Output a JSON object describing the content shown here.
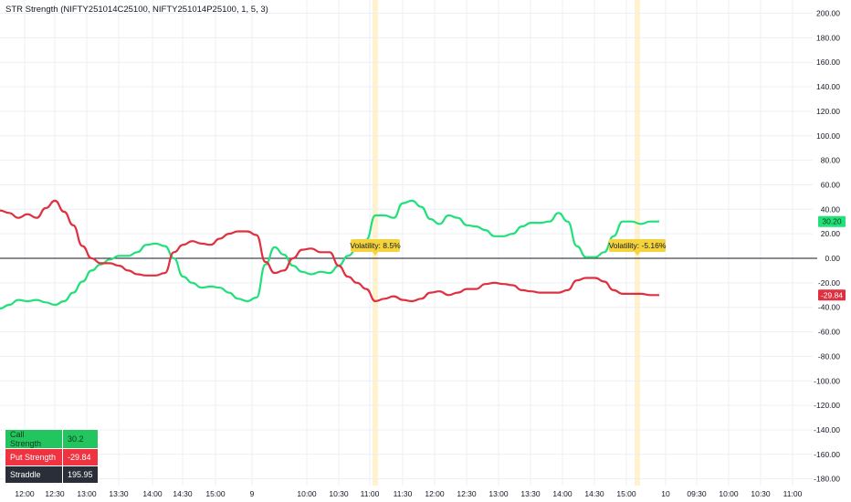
{
  "title": "STR Strength (NIFTY251014C25100, NIFTY251014P25100, 1, 5, 3)",
  "colors": {
    "call": "#22e07a",
    "put": "#e0303f",
    "zero_line": "#131722",
    "grid": "#eceff3",
    "highlight": "#fff2cc",
    "annotation_bg": "#f5d33c"
  },
  "stats_table": {
    "rows": [
      {
        "label": "Call Strength",
        "value": "30.2"
      },
      {
        "label": "Put Strength",
        "value": "-29.84"
      },
      {
        "label": "Straddle",
        "value": "195.95"
      }
    ]
  },
  "chart_data": {
    "type": "line",
    "title": "STR Strength (NIFTY251014C25100, NIFTY251014P25100, 1, 5, 3)",
    "ylim": [
      -180,
      200
    ],
    "y_ticks": [
      "200.00",
      "180.00",
      "160.00",
      "140.00",
      "120.00",
      "100.00",
      "80.00",
      "60.00",
      "40.00",
      "20.00",
      "0.00",
      "-20.00",
      "-40.00",
      "-60.00",
      "-80.00",
      "-100.00",
      "-120.00",
      "-140.00",
      "-160.00",
      "-180.00"
    ],
    "x_ticks": [
      "12:00",
      "12:30",
      "13:00",
      "13:30",
      "14:00",
      "14:30",
      "15:00",
      "9",
      "10:00",
      "10:30",
      "11:00",
      "11:30",
      "12:00",
      "12:30",
      "13:00",
      "13:30",
      "14:00",
      "14:30",
      "15:00",
      "10",
      "09:30",
      "10:00",
      "10:30",
      "11:00"
    ],
    "grid": true,
    "series": [
      {
        "name": "Call Strength",
        "color": "#22e07a",
        "last_value": "30.20",
        "values": [
          -41,
          -38,
          -34,
          -35,
          -34,
          -36,
          -38,
          -35,
          -28,
          -19,
          -10,
          -5,
          -1,
          2,
          2,
          5,
          11,
          12,
          10,
          0,
          -15,
          -20,
          -24,
          -23,
          -24,
          -28,
          -33,
          -35,
          -32,
          -5,
          9,
          3,
          -6,
          -11,
          -13,
          -11,
          -12,
          -6,
          2,
          8,
          15,
          35,
          35,
          33,
          45,
          47,
          42,
          32,
          28,
          35,
          33,
          27,
          26,
          23,
          18,
          18,
          20,
          26,
          29,
          29,
          30,
          37,
          30,
          10,
          1,
          1,
          5,
          18,
          30,
          30,
          28,
          30,
          30
        ]
      },
      {
        "name": "Put Strength",
        "color": "#e0303f",
        "last_value": "-29.84",
        "values": [
          39,
          37,
          33,
          36,
          33,
          41,
          47,
          38,
          27,
          10,
          0,
          -4,
          -4,
          -6,
          -10,
          -13,
          -14,
          -14,
          -12,
          5,
          11,
          14,
          12,
          11,
          16,
          20,
          22,
          22,
          19,
          -3,
          -12,
          -10,
          0,
          7,
          8,
          5,
          5,
          -6,
          -15,
          -20,
          -25,
          -35,
          -33,
          -31,
          -34,
          -35,
          -33,
          -28,
          -27,
          -30,
          -28,
          -25,
          -25,
          -21,
          -20,
          -21,
          -22,
          -26,
          -27,
          -28,
          -28,
          -28,
          -26,
          -18,
          -16,
          -16,
          -19,
          -26,
          -29,
          -29,
          -29,
          -30,
          -30
        ]
      }
    ],
    "annotations": [
      {
        "label": "Volatility: 8.5%"
      },
      {
        "label": "Volatility: -5.16%"
      }
    ]
  }
}
